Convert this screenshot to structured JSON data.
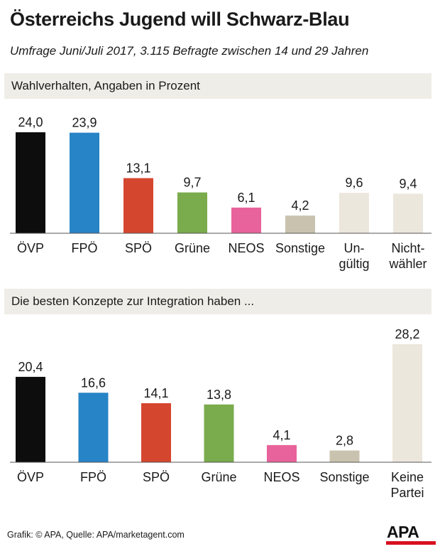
{
  "title": "Österreichs Jugend will Schwarz-Blau",
  "subtitle": "Umfrage Juni/Juli 2017, 3.115 Befragte zwischen 14 und 29 Jahren",
  "footer": "Grafik: © APA, Quelle: APA/marketagent.com",
  "logo": "APA",
  "colors": {
    "OEVP": "#0d0d0d",
    "FPOE": "#2784c6",
    "SPOE": "#d5462e",
    "Gruene": "#7aab4c",
    "NEOS": "#e8629b",
    "Sonstige": "#c9c2ae",
    "neutral": "#ece7dd",
    "logo_red": "#d7101e"
  },
  "chart_data": [
    {
      "type": "bar",
      "title": "Wahlverhalten, Angaben in Prozent",
      "categories": [
        [
          "ÖVP"
        ],
        [
          "FPÖ"
        ],
        [
          "SPÖ"
        ],
        [
          "Grüne"
        ],
        [
          "NEOS"
        ],
        [
          "Sonstige"
        ],
        [
          "Un-",
          "gültig"
        ],
        [
          "Nicht-",
          "wähler"
        ]
      ],
      "values": [
        24.0,
        23.9,
        13.1,
        9.7,
        6.1,
        4.2,
        9.6,
        9.4
      ],
      "value_labels": [
        "24,0",
        "23,9",
        "13,1",
        "9,7",
        "6,1",
        "4,2",
        "9,6",
        "9,4"
      ],
      "colors": [
        "#0d0d0d",
        "#2784c6",
        "#d5462e",
        "#7aab4c",
        "#e8629b",
        "#c9c2ae",
        "#ece7dd",
        "#ece7dd"
      ],
      "ylim": [
        0,
        24
      ]
    },
    {
      "type": "bar",
      "title": "Die besten Konzepte zur Integration haben ...",
      "categories": [
        [
          "ÖVP"
        ],
        [
          "FPÖ"
        ],
        [
          "SPÖ"
        ],
        [
          "Grüne"
        ],
        [
          "NEOS"
        ],
        [
          "Sonstige"
        ],
        [
          "Keine",
          "Partei"
        ]
      ],
      "values": [
        20.4,
        16.6,
        14.1,
        13.8,
        4.1,
        2.8,
        28.2
      ],
      "value_labels": [
        "20,4",
        "16,6",
        "14,1",
        "13,8",
        "4,1",
        "2,8",
        "28,2"
      ],
      "colors": [
        "#0d0d0d",
        "#2784c6",
        "#d5462e",
        "#7aab4c",
        "#e8629b",
        "#c9c2ae",
        "#ece7dd"
      ],
      "ylim": [
        0,
        28.2
      ]
    }
  ]
}
